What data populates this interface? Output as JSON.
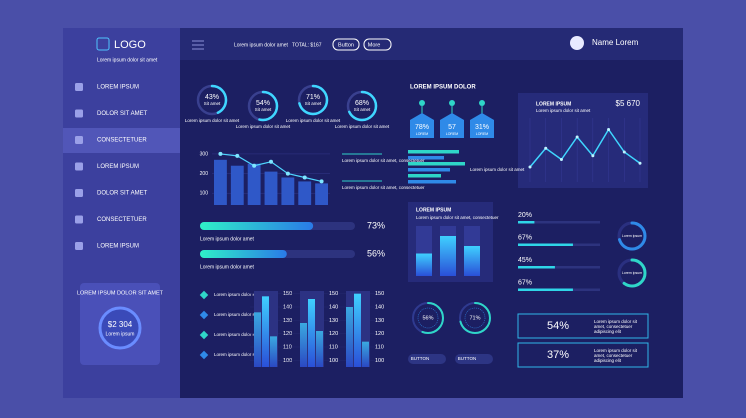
{
  "sidebar": {
    "logo": "LOGO",
    "tagline": "Lorem ipsum dolor sit amet",
    "menu": [
      "LOREM IPSUM",
      "DOLOR SIT AMET",
      "CONSECTETUER",
      "LOREM IPSUM",
      "DOLOR SIT AMET",
      "CONSECTETUER",
      "LOREM IPSUM"
    ],
    "card": {
      "title": "LOREM IPSUM DOLOR SIT AMET",
      "amount": "$2 304",
      "caption": "Lorem ipsum"
    }
  },
  "topbar": {
    "text": "Lorem ipsum dolor amet",
    "total": "TOTAL: $167",
    "button": "Button",
    "more": "More",
    "user": "Name Lorem"
  },
  "donuts": [
    {
      "value": 43,
      "label": "43%",
      "caption": "Sit amet",
      "text": "Lorem ipsum dolor sit amet"
    },
    {
      "value": 54,
      "label": "54%",
      "caption": "Sit amet",
      "text": "Lorem ipsum dolor sit amet"
    },
    {
      "value": 71,
      "label": "71%",
      "caption": "Sit amet",
      "text": "Lorem ipsum dolor sit amet"
    },
    {
      "value": 68,
      "label": "68%",
      "caption": "Sit amet",
      "text": "Lorem ipsum dolor sit amet"
    }
  ],
  "combo": {
    "ylim": [
      40,
      320
    ],
    "yticks": [
      100,
      200,
      300
    ],
    "bars": [
      270,
      240,
      250,
      210,
      180,
      160,
      150
    ],
    "line": [
      300,
      290,
      240,
      260,
      200,
      180,
      160
    ],
    "notes": [
      "Lorem ipsum dolor sit amet, consectetuer",
      "Lorem ipsum dolor sit amet, consectetuer"
    ]
  },
  "progress": [
    {
      "value": 73,
      "label": "73%",
      "text": "Lorem ipsum dolor amet"
    },
    {
      "value": 56,
      "label": "56%",
      "text": "Lorem ipsum dolor amet"
    }
  ],
  "groups": {
    "items": [
      "Lorem ipsum dolor sit amet",
      "Lorem ipsum dolor sit amet",
      "Lorem ipsum dolor sit amet",
      "Lorem ipsum dolor sit amet"
    ],
    "ylim": [
      95,
      152
    ],
    "yticks": [
      150,
      140,
      130,
      120,
      110,
      100
    ],
    "charts": [
      [
        136,
        148,
        118
      ],
      [
        128,
        146,
        122
      ],
      [
        140,
        150,
        114
      ]
    ]
  },
  "pins": {
    "title": "LOREM IPSUM DOLOR",
    "items": [
      {
        "label": "78%",
        "caption": "LOREM"
      },
      {
        "label": "57",
        "caption": "LOREM"
      },
      {
        "label": "31%",
        "caption": "LOREM"
      }
    ]
  },
  "hbars": {
    "values": [
      85,
      60,
      95,
      70,
      55,
      80
    ],
    "text": "Lorem ipsum dolor sit amet"
  },
  "card": {
    "title": "LOREM IPSUM",
    "text": "Lorem ipsum dolor sit amet, consectetuer",
    "values": [
      45,
      80,
      60
    ]
  },
  "rings": [
    {
      "value": 56,
      "label": "56%",
      "button": "BUTTON"
    },
    {
      "value": 71,
      "label": "71%",
      "button": "BUTTON"
    }
  ],
  "linecard": {
    "title": "LOREM IPSUM",
    "text": "Lorem ipsum dolor sit amet",
    "amount": "$5 670",
    "values": [
      20,
      45,
      30,
      60,
      35,
      70,
      40,
      25
    ]
  },
  "meters": [
    {
      "value": 20,
      "label": "20%"
    },
    {
      "value": 67,
      "label": "67%"
    },
    {
      "value": 45,
      "label": "45%"
    },
    {
      "value": 67,
      "label": "67%"
    }
  ],
  "minidonuts": [
    {
      "value": 70,
      "caption": "Lorem ipsum"
    },
    {
      "value": 60,
      "caption": "Lorem ipsum"
    }
  ],
  "boxes": [
    {
      "label": "54%",
      "text": "Lorem ipsum dolor sit amet, consectetuer adipiscing elit"
    },
    {
      "label": "37%",
      "text": "Lorem ipsum dolor sit amet, consectetuer adipiscing elit"
    }
  ]
}
